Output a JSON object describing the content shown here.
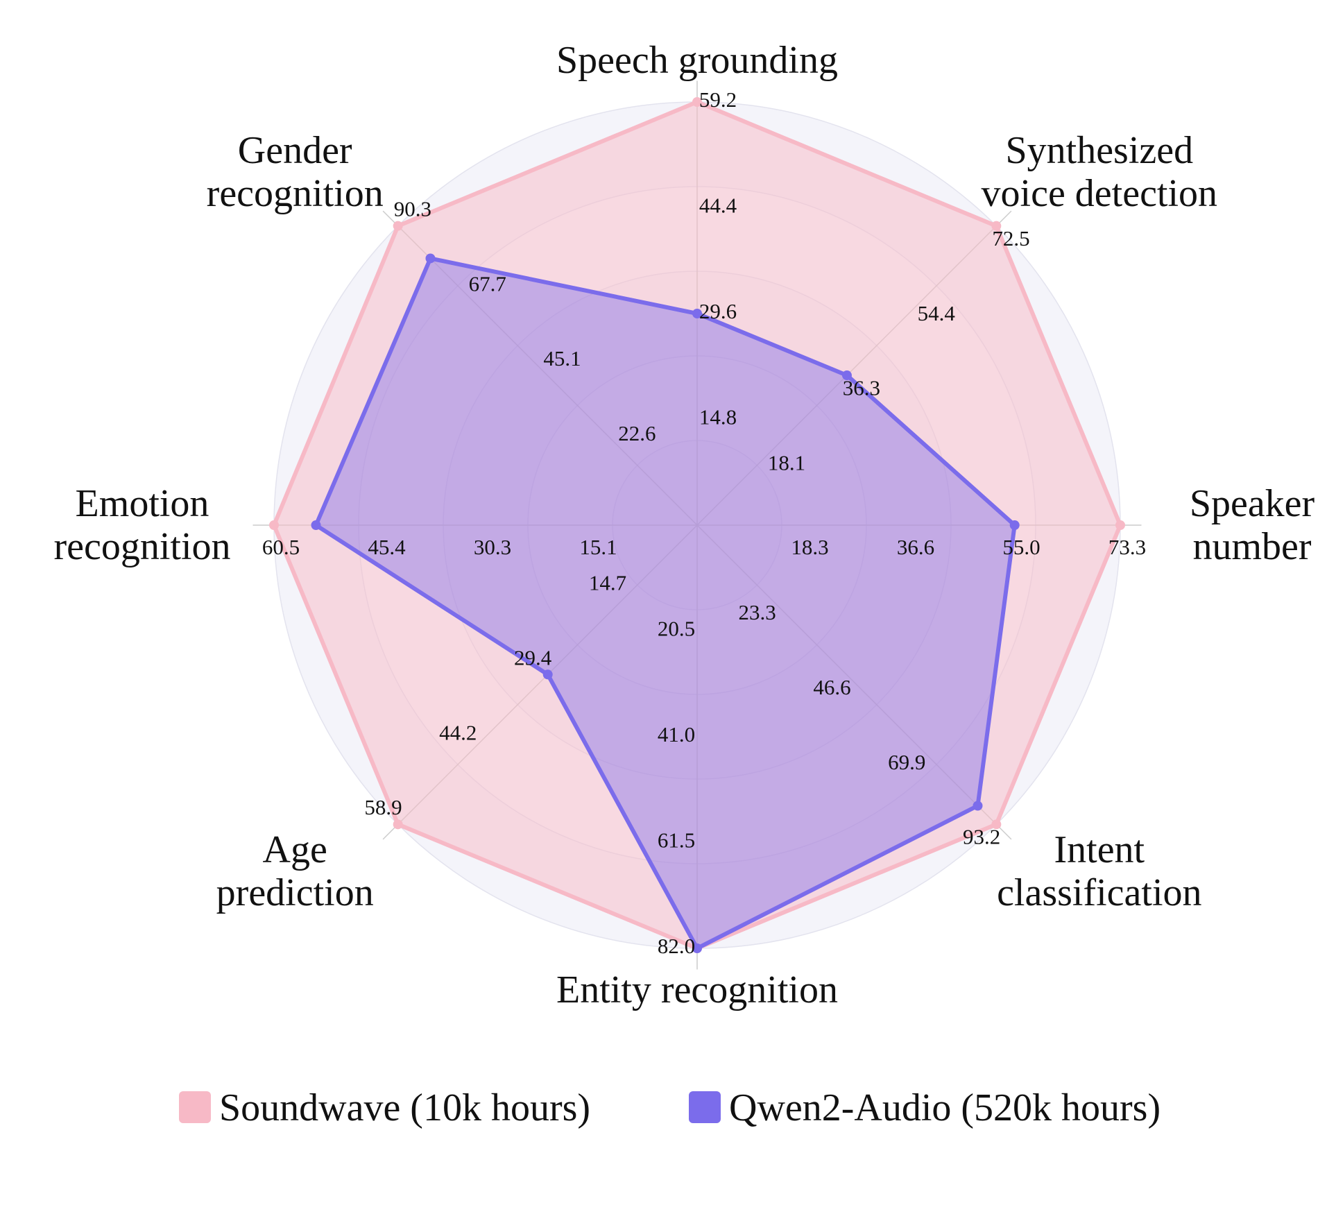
{
  "chart_data": {
    "type": "radar",
    "title": "",
    "axes": [
      {
        "label": [
          "Speech grounding"
        ],
        "max": 59.2,
        "ticks": [
          "14.8",
          "29.6",
          "44.4",
          "59.2"
        ]
      },
      {
        "label": [
          "Synthesized",
          "voice detection"
        ],
        "max": 72.5,
        "ticks": [
          "18.1",
          "36.3",
          "54.4",
          "72.5"
        ]
      },
      {
        "label": [
          "Speaker",
          "number"
        ],
        "max": 73.3,
        "ticks": [
          "18.3",
          "36.6",
          "55.0",
          "73.3"
        ]
      },
      {
        "label": [
          "Intent",
          "classification"
        ],
        "max": 93.2,
        "ticks": [
          "23.3",
          "46.6",
          "69.9",
          "93.2"
        ]
      },
      {
        "label": [
          "Entity recognition"
        ],
        "max": 82.0,
        "ticks": [
          "20.5",
          "41.0",
          "61.5",
          "82.0"
        ]
      },
      {
        "label": [
          "Age",
          "prediction"
        ],
        "max": 58.9,
        "ticks": [
          "14.7",
          "29.4",
          "44.2",
          "58.9"
        ]
      },
      {
        "label": [
          "Emotion",
          "recognition"
        ],
        "max": 60.5,
        "ticks": [
          "15.1",
          "30.3",
          "45.4",
          "60.5"
        ]
      },
      {
        "label": [
          "Gender",
          "recognition"
        ],
        "max": 90.3,
        "ticks": [
          "22.6",
          "45.1",
          "67.7",
          "90.3"
        ]
      }
    ],
    "series": [
      {
        "name": "Soundwave (10k hours)",
        "color": "#F7B9C6",
        "values": [
          59.2,
          72.5,
          73.3,
          93.2,
          82.0,
          58.9,
          60.5,
          90.3
        ]
      },
      {
        "name": "Qwen2-Audio (520k hours)",
        "color": "#7B6CEB",
        "values": [
          29.6,
          36.3,
          55.0,
          87.4,
          82.0,
          29.4,
          54.5,
          80.5
        ]
      }
    ],
    "legend_position": "bottom",
    "grid": true
  }
}
